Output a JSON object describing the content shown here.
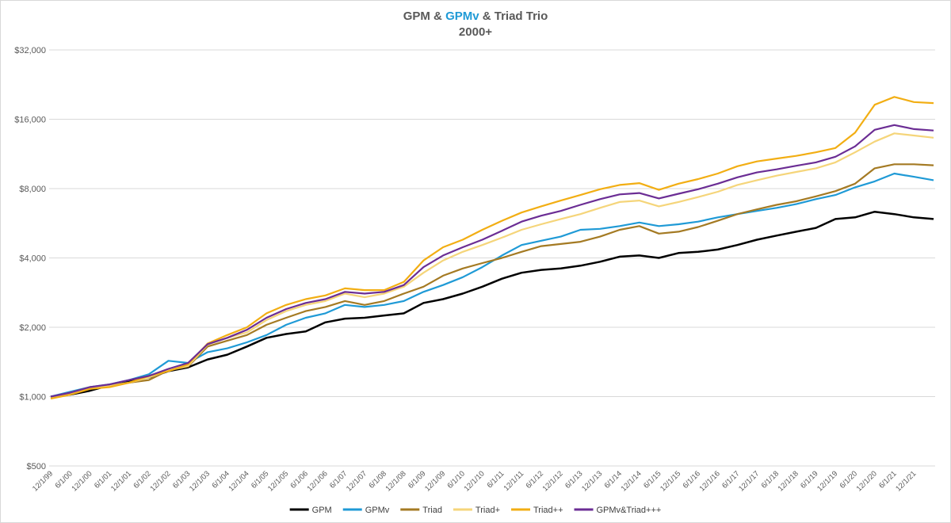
{
  "chart_data": {
    "type": "line",
    "title_parts": {
      "prefix": "GPM & ",
      "highlight": "GPMv",
      "suffix": " & Triad Trio"
    },
    "subtitle": "2000+",
    "xlabel": "",
    "ylabel": "",
    "y_scale": "log2",
    "ylim": [
      500,
      32000
    ],
    "y_ticks": [
      500,
      1000,
      2000,
      4000,
      8000,
      16000,
      32000
    ],
    "y_tick_labels": [
      "$500",
      "$1,000",
      "$2,000",
      "$4,000",
      "$8,000",
      "$16,000",
      "$32,000"
    ],
    "grid": true,
    "legend_position": "bottom-center",
    "x_tick_labels": [
      "12/1/99",
      "6/1/00",
      "12/1/00",
      "6/1/01",
      "12/1/01",
      "6/1/02",
      "12/1/02",
      "6/1/03",
      "12/1/03",
      "6/1/04",
      "12/1/04",
      "6/1/05",
      "12/1/05",
      "6/1/06",
      "12/1/06",
      "6/1/07",
      "12/1/07",
      "6/1/08",
      "12/1/08",
      "6/1/09",
      "12/1/09",
      "6/1/10",
      "12/1/10",
      "6/1/11",
      "12/1/11",
      "6/1/12",
      "12/1/12",
      "6/1/13",
      "12/1/13",
      "6/1/14",
      "12/1/14",
      "6/1/15",
      "12/1/15",
      "6/1/16",
      "12/1/16",
      "6/1/17",
      "12/1/17",
      "6/1/18",
      "12/1/18",
      "6/1/19",
      "12/1/19",
      "6/1/20",
      "12/1/20",
      "6/1/21",
      "12/1/21"
    ],
    "x": [
      0,
      0.5,
      1,
      1.5,
      2,
      2.5,
      3,
      3.5,
      4,
      4.5,
      5,
      5.5,
      6,
      6.5,
      7,
      7.5,
      8,
      8.5,
      9,
      9.5,
      10,
      10.5,
      11,
      11.5,
      12,
      12.5,
      13,
      13.5,
      14,
      14.5,
      15,
      15.5,
      16,
      16.5,
      17,
      17.5,
      18,
      18.5,
      19,
      19.5,
      20,
      20.5,
      21,
      21.5,
      22,
      22.5
    ],
    "series": [
      {
        "name": "GPM",
        "color": "#000000",
        "values": [
          1000,
          1020,
          1060,
          1120,
          1170,
          1210,
          1290,
          1340,
          1450,
          1520,
          1650,
          1800,
          1870,
          1920,
          2100,
          2180,
          2200,
          2250,
          2300,
          2550,
          2650,
          2800,
          3000,
          3250,
          3450,
          3550,
          3600,
          3700,
          3850,
          4050,
          4100,
          4000,
          4200,
          4250,
          4350,
          4550,
          4800,
          5000,
          5200,
          5400,
          5900,
          6000,
          6350,
          6200,
          6000,
          5900
        ]
      },
      {
        "name": "GPMv",
        "color": "#1f9ad6",
        "values": [
          1000,
          1050,
          1100,
          1130,
          1180,
          1250,
          1430,
          1400,
          1560,
          1620,
          1720,
          1850,
          2050,
          2200,
          2300,
          2500,
          2450,
          2500,
          2600,
          2850,
          3050,
          3300,
          3650,
          4100,
          4550,
          4750,
          4950,
          5300,
          5350,
          5500,
          5700,
          5500,
          5600,
          5750,
          6000,
          6200,
          6400,
          6600,
          6850,
          7200,
          7500,
          8100,
          8600,
          9300,
          9000,
          8700
        ]
      },
      {
        "name": "Triad",
        "color": "#a47a23",
        "values": [
          990,
          1040,
          1100,
          1120,
          1150,
          1180,
          1300,
          1350,
          1650,
          1750,
          1850,
          2050,
          2200,
          2350,
          2450,
          2600,
          2500,
          2600,
          2800,
          3000,
          3350,
          3600,
          3800,
          4000,
          4250,
          4500,
          4600,
          4700,
          4950,
          5300,
          5500,
          5100,
          5200,
          5450,
          5800,
          6200,
          6500,
          6800,
          7050,
          7400,
          7800,
          8400,
          9800,
          10200,
          10200,
          10100
        ]
      },
      {
        "name": "Triad+",
        "color": "#f5d57a",
        "values": [
          990,
          1030,
          1090,
          1110,
          1150,
          1210,
          1300,
          1360,
          1680,
          1800,
          1900,
          2150,
          2350,
          2500,
          2600,
          2800,
          2700,
          2800,
          3000,
          3450,
          3900,
          4250,
          4550,
          4900,
          5300,
          5600,
          5900,
          6200,
          6600,
          7000,
          7100,
          6700,
          7000,
          7350,
          7750,
          8300,
          8700,
          9100,
          9450,
          9800,
          10400,
          11500,
          12800,
          13900,
          13600,
          13300
        ]
      },
      {
        "name": "Triad++",
        "color": "#f2ae13",
        "values": [
          980,
          1020,
          1080,
          1100,
          1150,
          1230,
          1290,
          1380,
          1700,
          1850,
          2000,
          2300,
          2500,
          2650,
          2750,
          2950,
          2900,
          2900,
          3150,
          3900,
          4450,
          4800,
          5300,
          5800,
          6300,
          6700,
          7100,
          7500,
          7950,
          8300,
          8450,
          7900,
          8400,
          8800,
          9300,
          10000,
          10500,
          10800,
          11100,
          11500,
          12000,
          14000,
          18500,
          20000,
          19000,
          18800
        ]
      },
      {
        "name": "GPMv&Triad+++",
        "color": "#6b2d94",
        "values": [
          1000,
          1040,
          1100,
          1130,
          1180,
          1230,
          1320,
          1400,
          1690,
          1800,
          1950,
          2200,
          2400,
          2550,
          2650,
          2850,
          2800,
          2850,
          3050,
          3650,
          4100,
          4450,
          4800,
          5250,
          5750,
          6100,
          6400,
          6800,
          7200,
          7550,
          7650,
          7250,
          7600,
          7950,
          8400,
          8950,
          9400,
          9700,
          10050,
          10400,
          11000,
          12200,
          14400,
          15100,
          14500,
          14300
        ]
      }
    ]
  }
}
